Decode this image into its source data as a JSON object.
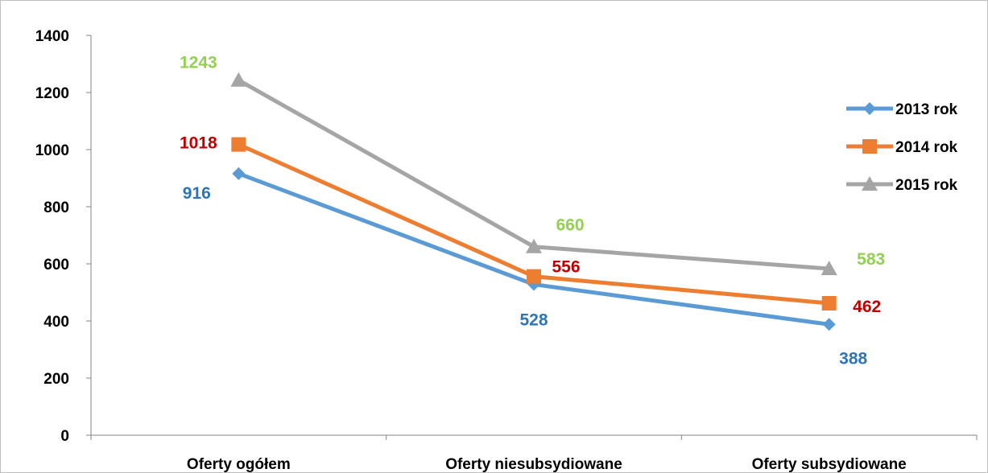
{
  "chart_data": {
    "type": "line",
    "categories": [
      "Oferty ogółem",
      "Oferty niesubsydiowane",
      "Oferty subsydiowane"
    ],
    "ylim": [
      0,
      1400
    ],
    "yticks": [
      0,
      200,
      400,
      600,
      800,
      1000,
      1200,
      1400
    ],
    "grid": false,
    "legend_position": "right",
    "series": [
      {
        "name": "2013 rok",
        "values": [
          916,
          528,
          388
        ],
        "color": "#5b9bd5",
        "label_color": "#2e75b6",
        "marker": "diamond"
      },
      {
        "name": "2014 rok",
        "values": [
          1018,
          556,
          462
        ],
        "color": "#ed7d31",
        "label_color": "#c00000",
        "marker": "square"
      },
      {
        "name": "2015 rok",
        "values": [
          1243,
          660,
          583
        ],
        "color": "#a5a5a5",
        "label_color": "#92d050",
        "marker": "triangle"
      }
    ]
  }
}
